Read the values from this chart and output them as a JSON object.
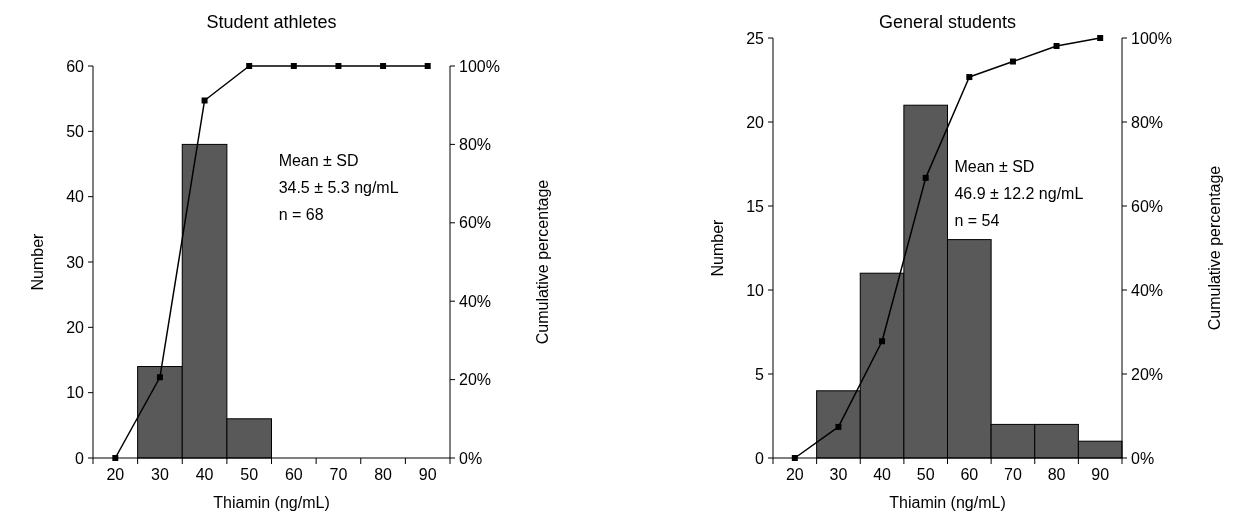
{
  "chart_data": [
    {
      "type": "bar",
      "title": "Student athletes",
      "xlabel": "Thiamin (ng/mL)",
      "ylabel": "Number",
      "y2label": "Cumulative percentage",
      "categories": [
        "20",
        "30",
        "40",
        "50",
        "60",
        "70",
        "80",
        "90"
      ],
      "series": [
        {
          "color": "#595959",
          "values": [
            null,
            14,
            48,
            6,
            0,
            0,
            0,
            0
          ]
        },
        {
          "type": "line",
          "axis": "y2",
          "color": "#000000",
          "values": [
            0,
            20.6,
            91.2,
            100,
            100,
            100,
            100,
            100
          ]
        }
      ],
      "ylim": [
        0,
        60
      ],
      "yticks": [
        0,
        10,
        20,
        30,
        40,
        50,
        60
      ],
      "y2lim": [
        0,
        100
      ],
      "y2ticks": [
        {
          "value": 0,
          "label": "0%"
        },
        {
          "value": 20,
          "label": "20%"
        },
        {
          "value": 40,
          "label": "40%"
        },
        {
          "value": 60,
          "label": "60%"
        },
        {
          "value": 80,
          "label": "80%"
        },
        {
          "value": 100,
          "label": "100%"
        }
      ],
      "marker": "square",
      "grid": false,
      "annotations": [
        "Mean ± SD",
        "34.5 ± 5.3 ng/mL",
        "n = 68"
      ]
    },
    {
      "type": "bar",
      "title": "General students",
      "xlabel": "Thiamin (ng/mL)",
      "ylabel": "Number",
      "y2label": "Cumulative percentage",
      "categories": [
        "20",
        "30",
        "40",
        "50",
        "60",
        "70",
        "80",
        "90"
      ],
      "series": [
        {
          "color": "#595959",
          "values": [
            null,
            4,
            11,
            21,
            13,
            2,
            2,
            1
          ]
        },
        {
          "type": "line",
          "axis": "y2",
          "color": "#000000",
          "values": [
            0,
            7.4,
            27.8,
            66.7,
            90.7,
            94.4,
            98.1,
            100
          ]
        }
      ],
      "ylim": [
        0,
        25
      ],
      "yticks": [
        0,
        5,
        10,
        15,
        20,
        25
      ],
      "y2lim": [
        0,
        100
      ],
      "y2ticks": [
        {
          "value": 0,
          "label": "0%"
        },
        {
          "value": 20,
          "label": "20%"
        },
        {
          "value": 40,
          "label": "40%"
        },
        {
          "value": 60,
          "label": "60%"
        },
        {
          "value": 80,
          "label": "80%"
        },
        {
          "value": 100,
          "label": "100%"
        }
      ],
      "marker": "square",
      "grid": false,
      "annotations": [
        "Mean ± SD",
        "46.9 ± 12.2 ng/mL",
        "n = 54"
      ]
    }
  ]
}
